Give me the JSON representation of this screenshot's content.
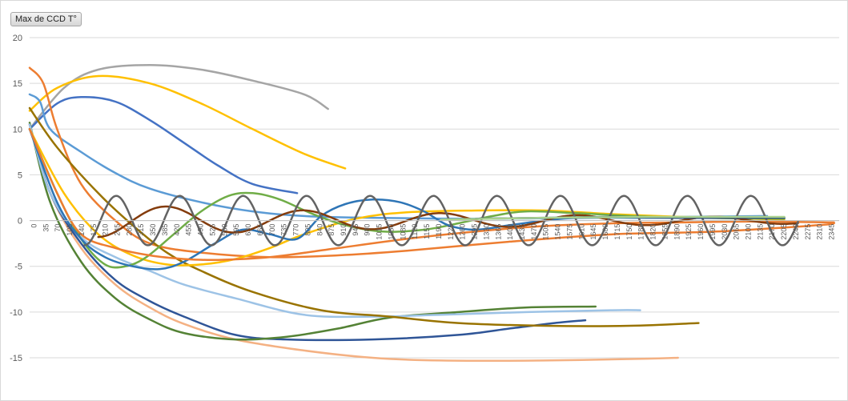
{
  "field_button": {
    "label": "Max de CCD T°"
  },
  "chart_data": {
    "type": "line",
    "title": "",
    "xlabel": "",
    "ylabel": "",
    "ylim": [
      -17.5,
      20
    ],
    "xlim": [
      0,
      2360
    ],
    "grid": "horizontal",
    "legend": "none",
    "y_ticks": [
      20,
      15,
      10,
      5,
      0,
      -5,
      -10,
      -15
    ],
    "x_tick_labels": [
      "0",
      "35",
      "70",
      "105",
      "140",
      "175",
      "210",
      "245",
      "280",
      "315",
      "350",
      "385",
      "420",
      "455",
      "490",
      "525",
      "560",
      "595",
      "630",
      "665",
      "700",
      "735",
      "770",
      "805",
      "840",
      "875",
      "910",
      "945",
      "980",
      "1015",
      "1050",
      "1085",
      "1120",
      "1155",
      "1190",
      "1225",
      "1260",
      "1295",
      "1330",
      "1365",
      "1400",
      "1435",
      "1470",
      "1505",
      "1540",
      "1575",
      "1610",
      "1645",
      "1680",
      "1715",
      "1750",
      "1785",
      "1820",
      "1855",
      "1890",
      "1925",
      "1960",
      "1995",
      "2030",
      "2065",
      "2100",
      "2135",
      "2170",
      "2205",
      "2240",
      "2275",
      "2310",
      "2345"
    ],
    "series": [
      {
        "color": "#a5a5a5",
        "points": [
          [
            0,
            10
          ],
          [
            100,
            14.5
          ],
          [
            200,
            16.5
          ],
          [
            350,
            17
          ],
          [
            500,
            16.5
          ],
          [
            650,
            15.3
          ],
          [
            800,
            13.8
          ],
          [
            870,
            12.2
          ]
        ]
      },
      {
        "color": "#ffc000",
        "points": [
          [
            0,
            12
          ],
          [
            80,
            14.5
          ],
          [
            200,
            15.8
          ],
          [
            350,
            15
          ],
          [
            500,
            12.8
          ],
          [
            650,
            10
          ],
          [
            800,
            7.3
          ],
          [
            920,
            5.7
          ]
        ]
      },
      {
        "color": "#4472c4",
        "points": [
          [
            0,
            10
          ],
          [
            80,
            12.8
          ],
          [
            150,
            13.5
          ],
          [
            250,
            13
          ],
          [
            350,
            11
          ],
          [
            450,
            8.5
          ],
          [
            550,
            6
          ],
          [
            650,
            4
          ],
          [
            780,
            3
          ]
        ]
      },
      {
        "color": "#5b9bd5",
        "points": [
          [
            0,
            13.8
          ],
          [
            30,
            13
          ],
          [
            60,
            10
          ],
          [
            150,
            7.5
          ],
          [
            250,
            5.2
          ],
          [
            350,
            3.5
          ],
          [
            500,
            2
          ],
          [
            650,
            1
          ],
          [
            800,
            0.5
          ],
          [
            1000,
            0.3
          ],
          [
            1300,
            0.2
          ],
          [
            1600,
            0.3
          ],
          [
            1900,
            0.4
          ],
          [
            2150,
            0.5
          ]
        ]
      },
      {
        "color": "#ed7d31",
        "points": [
          [
            0,
            16.7
          ],
          [
            40,
            15
          ],
          [
            80,
            10
          ],
          [
            150,
            4
          ],
          [
            250,
            0
          ],
          [
            350,
            -2.5
          ],
          [
            500,
            -3.5
          ],
          [
            700,
            -4
          ],
          [
            900,
            -3.8
          ],
          [
            1100,
            -3.3
          ],
          [
            1400,
            -2.3
          ],
          [
            1700,
            -1.5
          ],
          [
            2000,
            -1.2
          ],
          [
            2300,
            -0.5
          ],
          [
            2345,
            -0.3
          ]
        ]
      },
      {
        "color": "#f4b183",
        "points": [
          [
            0,
            10.5
          ],
          [
            60,
            3
          ],
          [
            150,
            -3
          ],
          [
            250,
            -7
          ],
          [
            350,
            -9.5
          ],
          [
            450,
            -11.3
          ],
          [
            600,
            -13
          ],
          [
            800,
            -14.2
          ],
          [
            1000,
            -15
          ],
          [
            1200,
            -15.3
          ],
          [
            1500,
            -15.3
          ],
          [
            1800,
            -15.1
          ],
          [
            1890,
            -15
          ]
        ]
      },
      {
        "color": "#2f5597",
        "points": [
          [
            0,
            10.5
          ],
          [
            60,
            3
          ],
          [
            150,
            -2.5
          ],
          [
            250,
            -6.5
          ],
          [
            350,
            -8.8
          ],
          [
            450,
            -10.5
          ],
          [
            600,
            -12.5
          ],
          [
            750,
            -13
          ],
          [
            1000,
            -13
          ],
          [
            1250,
            -12.5
          ],
          [
            1400,
            -11.8
          ],
          [
            1530,
            -11.2
          ],
          [
            1620,
            -10.9
          ]
        ]
      },
      {
        "color": "#548235",
        "points": [
          [
            0,
            10.7
          ],
          [
            60,
            2
          ],
          [
            150,
            -4.5
          ],
          [
            250,
            -8.5
          ],
          [
            350,
            -10.8
          ],
          [
            450,
            -12.3
          ],
          [
            600,
            -13
          ],
          [
            750,
            -12.7
          ],
          [
            900,
            -11.8
          ],
          [
            1050,
            -10.6
          ],
          [
            1250,
            -10
          ],
          [
            1450,
            -9.5
          ],
          [
            1650,
            -9.4
          ]
        ]
      },
      {
        "color": "#9dc3e6",
        "points": [
          [
            0,
            10.5
          ],
          [
            60,
            3
          ],
          [
            150,
            -1.8
          ],
          [
            250,
            -4
          ],
          [
            350,
            -5.5
          ],
          [
            450,
            -7
          ],
          [
            600,
            -8.5
          ],
          [
            800,
            -10.3
          ],
          [
            1000,
            -10.5
          ],
          [
            1200,
            -10.3
          ],
          [
            1450,
            -10
          ],
          [
            1700,
            -9.8
          ],
          [
            1780,
            -9.8
          ]
        ]
      },
      {
        "color": "#997300",
        "points": [
          [
            0,
            12.3
          ],
          [
            80,
            8
          ],
          [
            200,
            3
          ],
          [
            300,
            -0.5
          ],
          [
            400,
            -3.5
          ],
          [
            500,
            -5.5
          ],
          [
            650,
            -7.8
          ],
          [
            850,
            -9.8
          ],
          [
            1050,
            -10.5
          ],
          [
            1250,
            -11.2
          ],
          [
            1500,
            -11.5
          ],
          [
            1750,
            -11.5
          ],
          [
            1950,
            -11.2
          ]
        ]
      },
      {
        "color": "#ffc000",
        "points": [
          [
            0,
            10
          ],
          [
            100,
            3
          ],
          [
            200,
            -1.5
          ],
          [
            300,
            -3.8
          ],
          [
            400,
            -4.8
          ],
          [
            500,
            -4.8
          ],
          [
            600,
            -4.2
          ],
          [
            700,
            -3
          ],
          [
            800,
            -1.5
          ],
          [
            950,
            0.2
          ],
          [
            1100,
            0.9
          ],
          [
            1300,
            1.1
          ],
          [
            1500,
            1.1
          ],
          [
            1700,
            0.7
          ],
          [
            1900,
            0.4
          ],
          [
            2100,
            0.2
          ],
          [
            2200,
            0.1
          ]
        ]
      },
      {
        "color": "#70ad47",
        "points": [
          [
            0,
            10
          ],
          [
            80,
            3
          ],
          [
            150,
            -2
          ],
          [
            220,
            -4.8
          ],
          [
            280,
            -5
          ],
          [
            340,
            -4
          ],
          [
            420,
            -1.5
          ],
          [
            500,
            1
          ],
          [
            580,
            2.7
          ],
          [
            650,
            3
          ],
          [
            730,
            2.3
          ],
          [
            820,
            0.8
          ],
          [
            920,
            -0.5
          ],
          [
            1030,
            -1.2
          ],
          [
            1150,
            -1
          ],
          [
            1250,
            -0.3
          ],
          [
            1350,
            0.5
          ],
          [
            1450,
            1
          ],
          [
            1600,
            0.8
          ],
          [
            1750,
            0.5
          ],
          [
            1950,
            0.3
          ],
          [
            2200,
            0.2
          ]
        ]
      },
      {
        "color": "#2e75b6",
        "points": [
          [
            0,
            10
          ],
          [
            80,
            2
          ],
          [
            150,
            -2
          ],
          [
            220,
            -4
          ],
          [
            300,
            -5
          ],
          [
            380,
            -5.3
          ],
          [
            450,
            -4.5
          ],
          [
            540,
            -2.5
          ],
          [
            620,
            -1
          ],
          [
            700,
            -1.5
          ],
          [
            780,
            -2
          ],
          [
            850,
            0.5
          ],
          [
            920,
            1.8
          ],
          [
            1000,
            2.3
          ],
          [
            1080,
            2
          ],
          [
            1150,
            1
          ],
          [
            1220,
            -0.5
          ],
          [
            1300,
            -1
          ],
          [
            1400,
            -0.5
          ],
          [
            1500,
            0
          ],
          [
            1600,
            0.3
          ],
          [
            1800,
            0.3
          ],
          [
            2000,
            0.3
          ],
          [
            2200,
            0.3
          ]
        ]
      },
      {
        "color": "#ed7d31",
        "points": [
          [
            0,
            10
          ],
          [
            80,
            3
          ],
          [
            150,
            -1.5
          ],
          [
            250,
            -3
          ],
          [
            350,
            -3.8
          ],
          [
            450,
            -4.2
          ],
          [
            550,
            -4.3
          ],
          [
            700,
            -4
          ],
          [
            900,
            -3
          ],
          [
            1100,
            -2
          ],
          [
            1300,
            -1.2
          ],
          [
            1500,
            -0.6
          ],
          [
            1700,
            -0.3
          ],
          [
            1900,
            -0.2
          ],
          [
            2100,
            -0.1
          ],
          [
            2345,
            -0.2
          ]
        ]
      },
      {
        "color": "#843c0c",
        "sine": {
          "x0": 200,
          "x1": 2240,
          "period": 400,
          "amp": 1.8,
          "phase": 0,
          "decay": 0.0008,
          "offset": 0
        }
      },
      {
        "color": "#636363",
        "sine": {
          "x0": 160,
          "x1": 2240,
          "period": 185,
          "amp": 2.7,
          "phase": 0,
          "decay": 0,
          "offset": 0
        }
      },
      {
        "color": "#264478",
        "points": [
          [
            1300,
            0.2
          ],
          [
            1500,
            0.3
          ],
          [
            1700,
            0.4
          ],
          [
            1900,
            0.3
          ],
          [
            2100,
            0.3
          ],
          [
            2200,
            0.3
          ]
        ]
      },
      {
        "color": "#a9d18e",
        "points": [
          [
            1200,
            0.1
          ],
          [
            1500,
            0.3
          ],
          [
            1800,
            0.4
          ],
          [
            2000,
            0.4
          ],
          [
            2200,
            0.4
          ]
        ]
      }
    ]
  }
}
